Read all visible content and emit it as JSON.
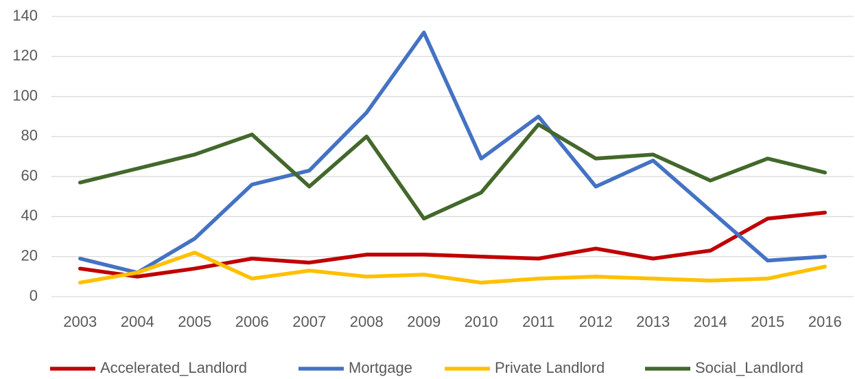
{
  "chart_data": {
    "type": "line",
    "categories": [
      "2003",
      "2004",
      "2005",
      "2006",
      "2007",
      "2008",
      "2009",
      "2010",
      "2011",
      "2012",
      "2013",
      "2014",
      "2015",
      "2016"
    ],
    "series": [
      {
        "name": "Accelerated_Landlord",
        "color": "#c00000",
        "values": [
          14,
          10,
          14,
          19,
          17,
          21,
          21,
          20,
          19,
          24,
          19,
          23,
          39,
          42
        ]
      },
      {
        "name": "Mortgage",
        "color": "#4472c4",
        "values": [
          19,
          12,
          29,
          56,
          63,
          92,
          132,
          69,
          90,
          55,
          68,
          43,
          18,
          20
        ]
      },
      {
        "name": "Private Landlord",
        "color": "#ffc000",
        "values": [
          7,
          12,
          22,
          9,
          13,
          10,
          11,
          7,
          9,
          10,
          9,
          8,
          9,
          15
        ]
      },
      {
        "name": "Social_Landlord",
        "color": "#43682b",
        "values": [
          57,
          64,
          71,
          81,
          55,
          80,
          39,
          52,
          86,
          69,
          71,
          58,
          69,
          62
        ]
      }
    ],
    "ylim": [
      0,
      140
    ],
    "yticks": [
      0,
      20,
      40,
      60,
      80,
      100,
      120,
      140
    ],
    "grid": true,
    "legend": "bottom"
  }
}
